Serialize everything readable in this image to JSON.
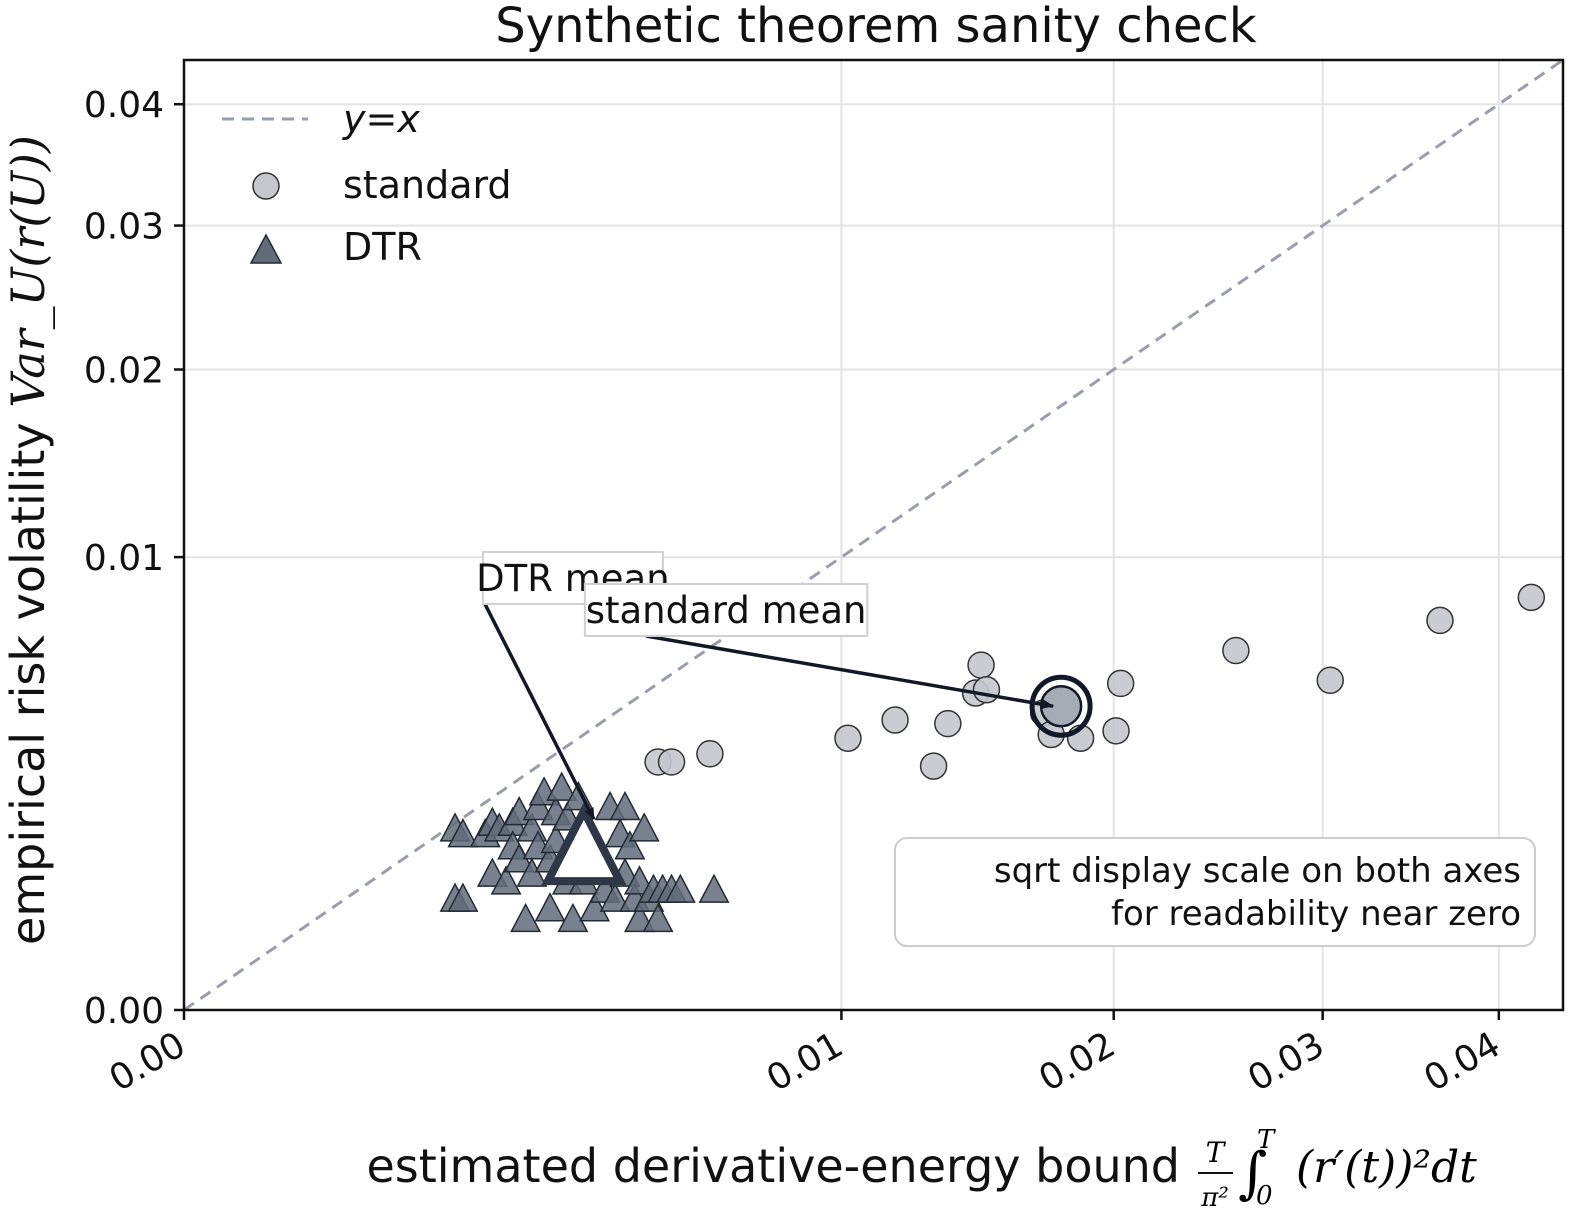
{
  "chart_data": {
    "type": "scatter",
    "title": "Synthetic theorem sanity check",
    "xlabel": "estimated derivative-energy bound",
    "xlabel_math": {
      "frac_num": "T",
      "frac_den": "π²",
      "integral": "∫",
      "lower": "0",
      "upper": "T",
      "body": "(r′(t))²dt"
    },
    "ylabel": "empirical risk volatility",
    "ylabel_math": "Var_U(r(U))",
    "scale": "sqrt",
    "xlim": [
      0,
      0.044
    ],
    "ylim": [
      0,
      0.044
    ],
    "x_ticks": [
      "0.00",
      "0.01",
      "0.02",
      "0.03",
      "0.04"
    ],
    "y_ticks": [
      "0.00",
      "0.01",
      "0.02",
      "0.03",
      "0.04"
    ],
    "tick_values": [
      0,
      0.01,
      0.02,
      0.03,
      0.04
    ],
    "grid": true,
    "legend": {
      "position": "top-left",
      "entries": [
        {
          "label": "y=x",
          "marker": "dashed-line"
        },
        {
          "label": "standard",
          "marker": "circle"
        },
        {
          "label": "DTR",
          "marker": "triangle"
        }
      ]
    },
    "reference_line": {
      "label": "y=x",
      "color": "#9a9eab"
    },
    "series": [
      {
        "name": "standard",
        "marker": "circle",
        "color": "#c4c7cd",
        "edge": "#333333",
        "points": [
          [
            0.0052,
            0.003
          ],
          [
            0.0055,
            0.003
          ],
          [
            0.0064,
            0.0032
          ],
          [
            0.0102,
            0.0036
          ],
          [
            0.0117,
            0.0041
          ],
          [
            0.013,
            0.0029
          ],
          [
            0.0135,
            0.004
          ],
          [
            0.0145,
            0.0049
          ],
          [
            0.0147,
            0.0058
          ],
          [
            0.0149,
            0.005
          ],
          [
            0.0171,
            0.0043
          ],
          [
            0.0174,
            0.0037
          ],
          [
            0.0186,
            0.0036
          ],
          [
            0.0201,
            0.0038
          ],
          [
            0.0203,
            0.0052
          ],
          [
            0.0256,
            0.0063
          ],
          [
            0.0304,
            0.0053
          ],
          [
            0.0365,
            0.0074
          ],
          [
            0.042,
            0.0083
          ]
        ]
      },
      {
        "name": "DTR",
        "marker": "triangle",
        "color": "#626b7a",
        "edge": "#222a35",
        "points": [
          [
            0.0017,
            0.0016
          ],
          [
            0.0018,
            0.0015
          ],
          [
            0.0017,
            0.0006
          ],
          [
            0.0018,
            0.0006
          ],
          [
            0.0021,
            0.0015
          ],
          [
            0.0022,
            0.0017
          ],
          [
            0.0022,
            0.0009
          ],
          [
            0.0023,
            0.0016
          ],
          [
            0.0024,
            0.0008
          ],
          [
            0.0025,
            0.0017
          ],
          [
            0.0025,
            0.0013
          ],
          [
            0.0026,
            0.0019
          ],
          [
            0.0026,
            0.0011
          ],
          [
            0.0027,
            0.0004
          ],
          [
            0.0028,
            0.0016
          ],
          [
            0.0028,
            0.0009
          ],
          [
            0.0029,
            0.002
          ],
          [
            0.0029,
            0.0013
          ],
          [
            0.003,
            0.0023
          ],
          [
            0.0031,
            0.0011
          ],
          [
            0.0031,
            0.0005
          ],
          [
            0.0032,
            0.0019
          ],
          [
            0.0032,
            0.0014
          ],
          [
            0.0033,
            0.0024
          ],
          [
            0.0034,
            0.0018
          ],
          [
            0.0034,
            0.0008
          ],
          [
            0.0035,
            0.0004
          ],
          [
            0.0036,
            0.0022
          ],
          [
            0.0037,
            0.0008
          ],
          [
            0.0038,
            0.0014
          ],
          [
            0.0039,
            0.0005
          ],
          [
            0.004,
            0.001
          ],
          [
            0.0041,
            0.0007
          ],
          [
            0.0042,
            0.002
          ],
          [
            0.0043,
            0.0006
          ],
          [
            0.0044,
            0.0015
          ],
          [
            0.0045,
            0.002
          ],
          [
            0.0045,
            0.0009
          ],
          [
            0.0046,
            0.0013
          ],
          [
            0.0047,
            0.0006
          ],
          [
            0.0048,
            0.0008
          ],
          [
            0.0048,
            0.0004
          ],
          [
            0.0049,
            0.0016
          ],
          [
            0.005,
            0.0006
          ],
          [
            0.0051,
            0.0007
          ],
          [
            0.0052,
            0.0004
          ],
          [
            0.0053,
            0.0007
          ],
          [
            0.0055,
            0.0007
          ],
          [
            0.0057,
            0.0007
          ],
          [
            0.0065,
            0.0007
          ]
        ]
      }
    ],
    "means": [
      {
        "name": "standard mean",
        "x": 0.0178,
        "y": 0.0045,
        "label_x": 0.0068,
        "label_y": 0.0078
      },
      {
        "name": "DTR mean",
        "x": 0.0037,
        "y": 0.0012,
        "label_x": 0.0035,
        "label_y": 0.0091
      }
    ],
    "annotations": [
      {
        "text": "DTR mean"
      },
      {
        "text": "standard mean"
      }
    ],
    "note": {
      "lines": [
        "sqrt display scale on both axes",
        "for readability near zero"
      ],
      "position": "bottom-right"
    }
  }
}
